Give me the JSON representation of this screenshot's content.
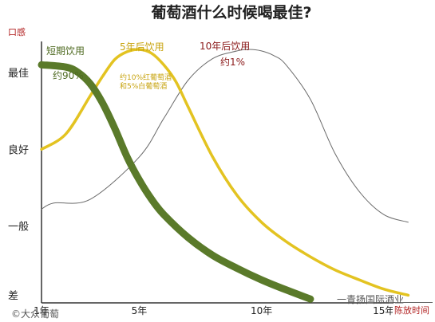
{
  "chart_data": {
    "type": "line",
    "title": "葡萄酒什么时候喝最佳?",
    "ylabel": "口感",
    "xlabel": "陈放时间",
    "y_levels": [
      "最佳",
      "良好",
      "一般",
      "差"
    ],
    "x_ticks": [
      "1年",
      "5年",
      "10年",
      "15年"
    ],
    "xlim": [
      1,
      17
    ],
    "ylim": [
      0,
      3.3
    ],
    "grid": false,
    "series": [
      {
        "name": "短期饮用",
        "note": "约90%",
        "color": "#5a7a2a",
        "x": [
          1,
          2,
          2.5,
          3,
          3.5,
          4,
          4.5,
          5,
          5.5,
          6,
          7,
          8,
          9,
          10,
          11,
          12
        ],
        "y": [
          3.1,
          3.07,
          3.0,
          2.85,
          2.6,
          2.27,
          1.9,
          1.6,
          1.35,
          1.15,
          0.85,
          0.62,
          0.45,
          0.3,
          0.17,
          0.05
        ]
      },
      {
        "name": "5年后饮用",
        "note": "约10%红葡萄酒 和5%白葡萄酒",
        "color": "#e3c321",
        "x": [
          1,
          2,
          3,
          3.5,
          4,
          4.5,
          5,
          5.5,
          6,
          6.5,
          7,
          8,
          9,
          10,
          11,
          12,
          13,
          14,
          15,
          16
        ],
        "y": [
          2.0,
          2.2,
          2.7,
          2.95,
          3.17,
          3.27,
          3.3,
          3.25,
          3.1,
          2.88,
          2.55,
          1.9,
          1.4,
          1.05,
          0.8,
          0.6,
          0.43,
          0.3,
          0.18,
          0.1
        ]
      },
      {
        "name": "10年后饮用",
        "note": "约1%",
        "color": "#6b6b6b",
        "x": [
          1,
          1.5,
          3,
          5,
          6,
          7,
          8,
          9,
          9.5,
          10,
          10.5,
          11,
          12,
          13,
          14,
          15,
          16
        ],
        "y": [
          1.22,
          1.3,
          1.35,
          1.9,
          2.4,
          2.9,
          3.18,
          3.28,
          3.3,
          3.28,
          3.22,
          3.1,
          2.65,
          1.95,
          1.45,
          1.15,
          1.05
        ]
      }
    ]
  },
  "watermarks": {
    "left": "©大众葡萄",
    "right": "一青扬国际酒业"
  }
}
